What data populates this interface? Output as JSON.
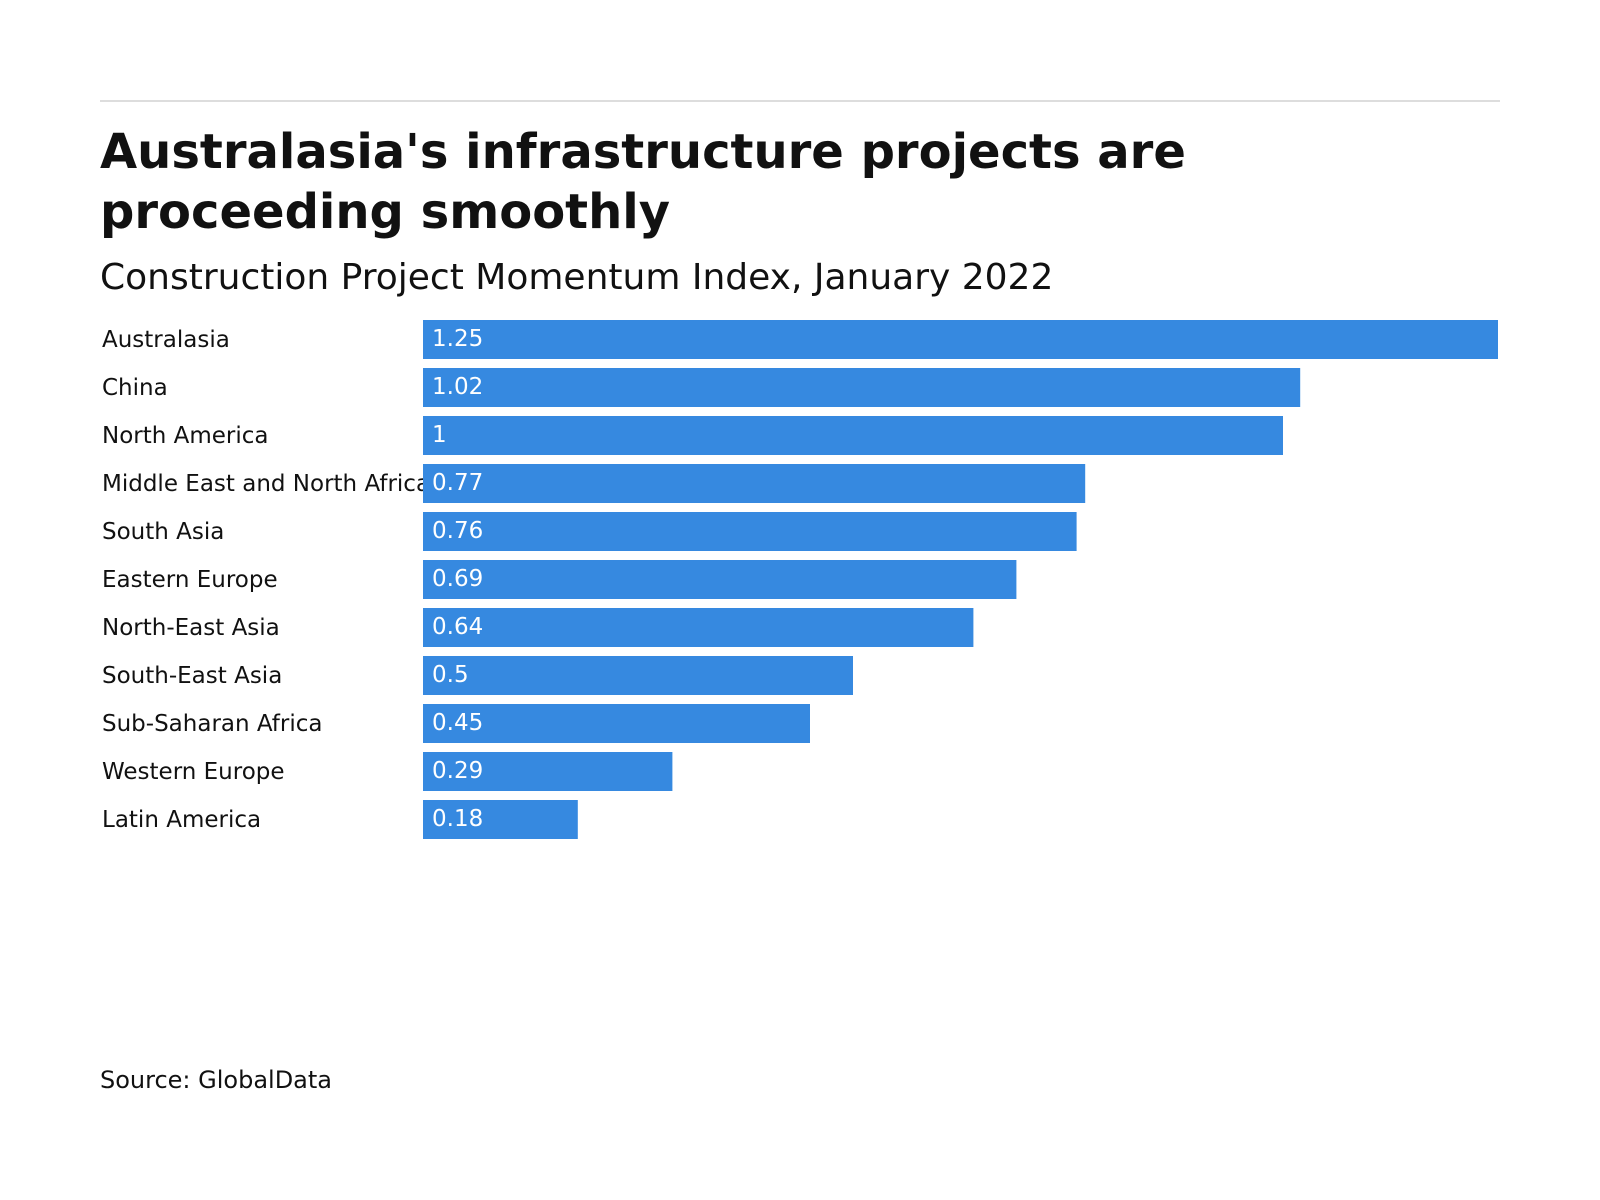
{
  "chart_data": {
    "type": "bar",
    "orientation": "horizontal",
    "title": "Australasia's infrastructure projects are proceeding smoothly",
    "subtitle": "Construction Project Momentum Index, January 2022",
    "source": "Source: GlobalData",
    "categories": [
      "Australasia",
      "China",
      "North America",
      "Middle East and North Africa",
      "South Asia",
      "Eastern Europe",
      "North-East Asia",
      "South-East Asia",
      "Sub-Saharan Africa",
      "Western Europe",
      "Latin America"
    ],
    "values": [
      1.25,
      1.02,
      1,
      0.77,
      0.76,
      0.69,
      0.64,
      0.5,
      0.45,
      0.29,
      0.18
    ],
    "color": "#3689e0"
  }
}
